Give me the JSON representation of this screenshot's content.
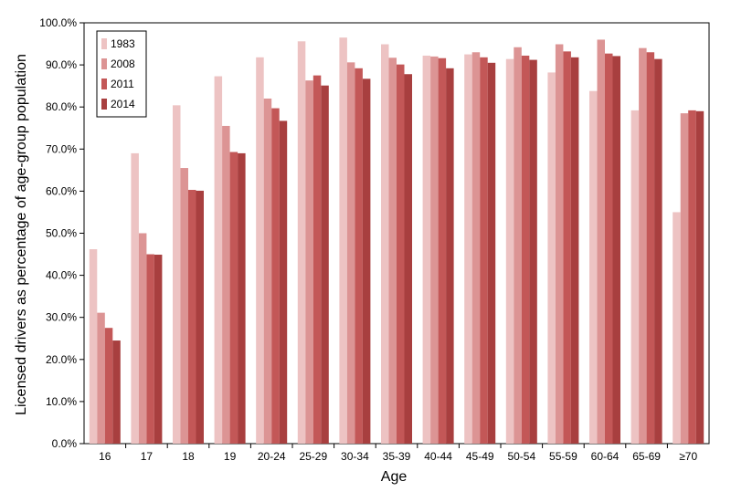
{
  "chart_data": {
    "type": "bar",
    "xlabel": "Age",
    "ylabel": "Licensed drivers as percentage of age-group population",
    "ylim": [
      0,
      100
    ],
    "y_ticks": [
      "0.0%",
      "10.0%",
      "20.0%",
      "30.0%",
      "40.0%",
      "50.0%",
      "60.0%",
      "70.0%",
      "80.0%",
      "90.0%",
      "100.0%"
    ],
    "categories": [
      "16",
      "17",
      "18",
      "19",
      "20-24",
      "25-29",
      "30-34",
      "35-39",
      "40-44",
      "45-49",
      "50-54",
      "55-59",
      "60-64",
      "65-69",
      "≥70"
    ],
    "legend_position": "top-left",
    "grid": false,
    "series": [
      {
        "name": "1983",
        "color": "#edc3c3",
        "values": [
          46.2,
          69.0,
          80.4,
          87.3,
          91.8,
          95.6,
          96.5,
          94.9,
          92.2,
          92.5,
          91.4,
          88.2,
          83.8,
          79.2,
          55.0
        ]
      },
      {
        "name": "2008",
        "color": "#dc9494",
        "values": [
          31.1,
          50.0,
          65.5,
          75.5,
          82.0,
          86.3,
          90.6,
          91.7,
          92.0,
          93.0,
          94.2,
          94.9,
          96.0,
          94.0,
          78.5
        ]
      },
      {
        "name": "2011",
        "color": "#c35757",
        "values": [
          27.5,
          45.0,
          60.3,
          69.3,
          79.7,
          87.5,
          89.2,
          90.1,
          91.6,
          91.8,
          92.2,
          93.2,
          92.7,
          93.0,
          79.2
        ]
      },
      {
        "name": "2014",
        "color": "#a83f3f",
        "values": [
          24.5,
          44.9,
          60.1,
          69.0,
          76.7,
          85.1,
          86.7,
          87.8,
          89.2,
          90.5,
          91.2,
          91.8,
          92.1,
          91.4,
          79.0
        ]
      }
    ]
  }
}
